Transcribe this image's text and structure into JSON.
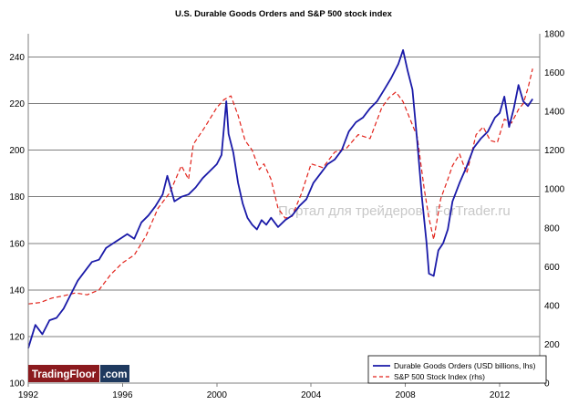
{
  "chart_data": {
    "type": "line",
    "title": "U.S. Durable Goods Orders and S&P 500 stock index",
    "x_ticks": [
      "1992",
      "1996",
      "2000",
      "2004",
      "2008",
      "2012"
    ],
    "xlim": [
      1992,
      2013.7
    ],
    "ylim_left": [
      100,
      250
    ],
    "ylim_right": [
      0,
      1800
    ],
    "y_ticks_left": [
      100,
      120,
      140,
      160,
      180,
      200,
      220,
      240
    ],
    "y_ticks_right": [
      0,
      200,
      400,
      600,
      800,
      1000,
      1200,
      1400,
      1600,
      1800
    ],
    "grid": true,
    "legend_position": "bottom-right",
    "series": [
      {
        "name": "Durable Goods Orders (USD billions, lhs)",
        "axis": "left",
        "color": "#1a1aa8",
        "style": "solid",
        "x": [
          1992.0,
          1992.3,
          1992.6,
          1992.9,
          1993.2,
          1993.5,
          1993.8,
          1994.1,
          1994.4,
          1994.7,
          1995.0,
          1995.3,
          1995.6,
          1995.9,
          1996.2,
          1996.5,
          1996.8,
          1997.1,
          1997.4,
          1997.7,
          1997.9,
          1998.2,
          1998.5,
          1998.8,
          1999.1,
          1999.4,
          1999.7,
          2000.0,
          2000.2,
          2000.4,
          2000.5,
          2000.7,
          2000.9,
          2001.1,
          2001.3,
          2001.5,
          2001.7,
          2001.9,
          2002.1,
          2002.3,
          2002.6,
          2002.9,
          2003.2,
          2003.5,
          2003.8,
          2004.1,
          2004.4,
          2004.7,
          2005.0,
          2005.3,
          2005.6,
          2005.9,
          2006.2,
          2006.5,
          2006.8,
          2007.1,
          2007.4,
          2007.7,
          2007.9,
          2008.1,
          2008.3,
          2008.5,
          2008.7,
          2008.9,
          2009.0,
          2009.2,
          2009.4,
          2009.6,
          2009.8,
          2010.0,
          2010.3,
          2010.6,
          2010.9,
          2011.2,
          2011.5,
          2011.8,
          2012.0,
          2012.2,
          2012.4,
          2012.6,
          2012.8,
          2013.0,
          2013.2,
          2013.4
        ],
        "values": [
          115,
          125,
          121,
          127,
          128,
          132,
          138,
          144,
          148,
          152,
          153,
          158,
          160,
          162,
          164,
          162,
          169,
          172,
          176,
          181,
          189,
          178,
          180,
          181,
          184,
          188,
          191,
          194,
          198,
          221,
          207,
          199,
          186,
          177,
          171,
          168,
          166,
          170,
          168,
          171,
          167,
          170,
          172,
          176,
          179,
          186,
          190,
          194,
          196,
          200,
          208,
          212,
          214,
          218,
          221,
          226,
          231,
          237,
          243,
          234,
          226,
          204,
          180,
          160,
          147,
          146,
          157,
          160,
          166,
          178,
          186,
          193,
          201,
          205,
          208,
          214,
          216,
          223,
          210,
          218,
          228,
          221,
          219,
          222
        ]
      },
      {
        "name": "S&P 500 Stock Index (rhs)",
        "axis": "right",
        "color": "#e2221a",
        "style": "dashed",
        "x": [
          1992.0,
          1992.5,
          1993.0,
          1993.5,
          1994.0,
          1994.5,
          1995.0,
          1995.5,
          1996.0,
          1996.5,
          1997.0,
          1997.5,
          1998.0,
          1998.5,
          1998.8,
          1999.0,
          1999.5,
          2000.0,
          2000.3,
          2000.6,
          2000.9,
          2001.2,
          2001.5,
          2001.8,
          2002.0,
          2002.3,
          2002.6,
          2002.9,
          2003.2,
          2003.6,
          2004.0,
          2004.5,
          2005.0,
          2005.5,
          2006.0,
          2006.5,
          2007.0,
          2007.3,
          2007.6,
          2007.9,
          2008.2,
          2008.5,
          2008.8,
          2009.0,
          2009.2,
          2009.5,
          2009.8,
          2010.0,
          2010.3,
          2010.6,
          2011.0,
          2011.3,
          2011.6,
          2011.9,
          2012.2,
          2012.5,
          2012.8,
          2013.0,
          2013.2,
          2013.4
        ],
        "values": [
          408,
          415,
          438,
          450,
          465,
          455,
          480,
          560,
          620,
          660,
          760,
          900,
          980,
          1120,
          1050,
          1230,
          1320,
          1420,
          1460,
          1480,
          1380,
          1250,
          1200,
          1100,
          1130,
          1050,
          900,
          850,
          860,
          980,
          1130,
          1110,
          1190,
          1210,
          1280,
          1260,
          1420,
          1470,
          1500,
          1450,
          1360,
          1270,
          1000,
          850,
          740,
          950,
          1050,
          1120,
          1180,
          1080,
          1280,
          1320,
          1250,
          1240,
          1360,
          1340,
          1410,
          1440,
          1520,
          1620
        ]
      }
    ]
  },
  "watermark": "Портал для трейдеров - ForTrader.ru",
  "logo": {
    "left": "TradingFloor",
    "right": ".com"
  }
}
